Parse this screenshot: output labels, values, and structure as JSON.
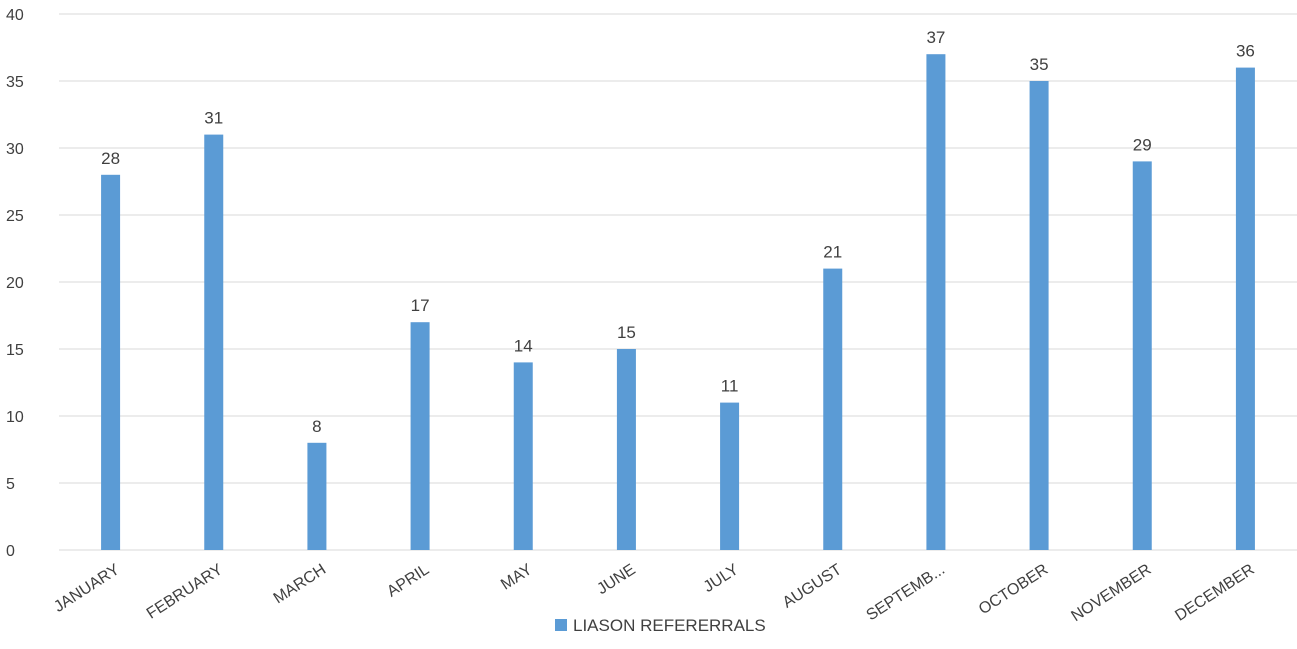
{
  "chart_data": {
    "type": "bar",
    "categories": [
      "JANUARY",
      "FEBRUARY",
      "MARCH",
      "APRIL",
      "MAY",
      "JUNE",
      "JULY",
      "AUGUST",
      "SEPTEMB...",
      "OCTOBER",
      "NOVEMBER",
      "DECEMBER"
    ],
    "series": [
      {
        "name": "LIASON REFERERRALS",
        "values": [
          28,
          31,
          8,
          17,
          14,
          15,
          11,
          21,
          37,
          35,
          29,
          36
        ],
        "color": "#5b9bd5"
      }
    ],
    "title": "",
    "xlabel": "",
    "ylabel": "",
    "ylim": [
      0,
      40
    ],
    "yticks": [
      0,
      5,
      10,
      15,
      20,
      25,
      30,
      35,
      40
    ],
    "grid": true,
    "legend_position": "bottom",
    "data_labels": true,
    "gridline_color": "#d9d9d9",
    "text_color": "#404040"
  }
}
